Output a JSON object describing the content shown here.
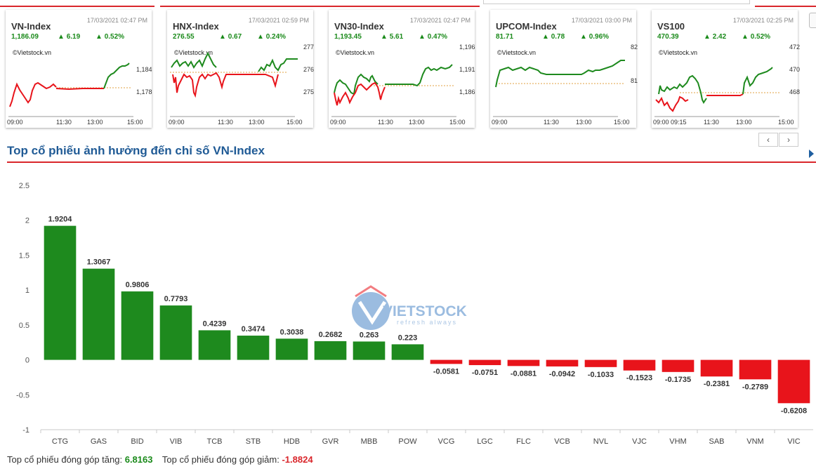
{
  "cards": [
    {
      "name": "VN-Index",
      "date": "17/03/2021 02:47 PM",
      "value": "1,186.09",
      "change": "6.19",
      "pct": "0.52%",
      "brand": "©Vietstock.vn",
      "yticks": [
        "1,184",
        "1,178"
      ],
      "xticks": [
        "09:00",
        "11:30",
        "13:00",
        "15:00"
      ]
    },
    {
      "name": "HNX-Index",
      "date": "17/03/2021 02:59 PM",
      "value": "276.55",
      "change": "0.67",
      "pct": "0.24%",
      "brand": "©Vietstock.vn",
      "yticks": [
        "277",
        "276",
        "275"
      ],
      "xticks": [
        "09:00",
        "11:30",
        "13:00",
        "15:00"
      ]
    },
    {
      "name": "VN30-Index",
      "date": "17/03/2021 02:47 PM",
      "value": "1,193.45",
      "change": "5.61",
      "pct": "0.47%",
      "brand": "©Vietstock.vn",
      "yticks": [
        "1,196",
        "1,191",
        "1,186"
      ],
      "xticks": [
        "09:00",
        "11:30",
        "13:00",
        "15:00"
      ]
    },
    {
      "name": "UPCOM-Index",
      "date": "17/03/2021 03:00 PM",
      "value": "81.71",
      "change": "0.78",
      "pct": "0.96%",
      "brand": "©Vietstock.vn",
      "yticks": [
        "82",
        "81"
      ],
      "xticks": [
        "09:00",
        "11:30",
        "13:00",
        "15:00"
      ]
    },
    {
      "name": "VS100",
      "date": "17/03/2021 02:25 PM",
      "value": "470.39",
      "change": "2.42",
      "pct": "0.52%",
      "brand": "©Vietstock.vn",
      "yticks": [
        "472",
        "470",
        "468"
      ],
      "xticks": [
        "09:00",
        "09:15",
        "11:30",
        "13:00",
        "15:00"
      ]
    }
  ],
  "nav": {
    "prev": "‹",
    "next": "›"
  },
  "section": {
    "title": "Top cổ phiếu ảnh hưởng đến chỉ số VN-Index"
  },
  "watermark": {
    "brand": "VIETSTOCK",
    "tagline": "refresh always"
  },
  "colors": {
    "up": "#1e8a1e",
    "down": "#e8141b",
    "accent": "#d9262b",
    "title": "#1f5a95"
  },
  "chart_data": {
    "type": "bar",
    "categories": [
      "CTG",
      "GAS",
      "BID",
      "VIB",
      "TCB",
      "STB",
      "HDB",
      "GVR",
      "MBB",
      "POW",
      "VCG",
      "LGC",
      "FLC",
      "VCB",
      "NVL",
      "VJC",
      "VHM",
      "SAB",
      "VNM",
      "VIC"
    ],
    "values": [
      1.9204,
      1.3067,
      0.9806,
      0.7793,
      0.4239,
      0.3474,
      0.3038,
      0.2682,
      0.263,
      0.223,
      -0.0581,
      -0.0751,
      -0.0881,
      -0.0942,
      -0.1033,
      -0.1523,
      -0.1735,
      -0.2381,
      -0.2789,
      -0.6208
    ],
    "value_labels": [
      "1.9204",
      "1.3067",
      "0.9806",
      "0.7793",
      "0.4239",
      "0.3474",
      "0.3038",
      "0.2682",
      "0.263",
      "0.223",
      "-0.0581",
      "-0.0751",
      "-0.0881",
      "-0.0942",
      "-0.1033",
      "-0.1523",
      "-0.1735",
      "-0.2381",
      "-0.2789",
      "-0.6208"
    ],
    "yticks": [
      "2.5",
      "2",
      "1.5",
      "1",
      "0.5",
      "0",
      "-0.5",
      "-1"
    ],
    "ylim": [
      -1,
      2.5
    ],
    "grid": false
  },
  "footer": {
    "up_label": "Top cổ phiếu đóng góp tăng:",
    "up_value": "6.8163",
    "down_label": "Top cổ phiếu đóng góp giảm:",
    "down_value": "-1.8824"
  }
}
